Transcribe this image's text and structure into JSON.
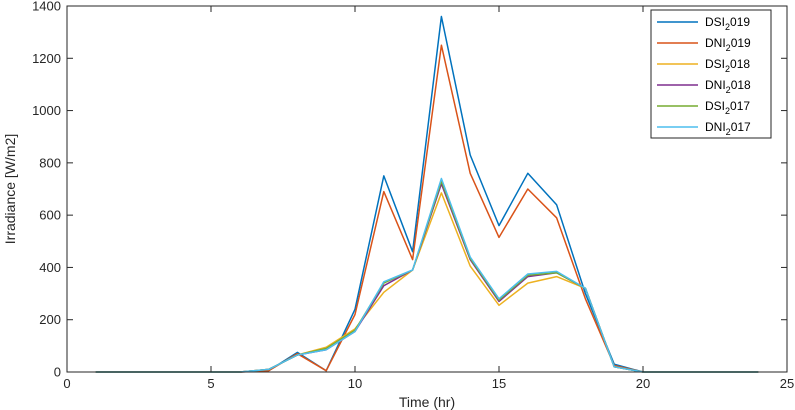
{
  "chart_data": {
    "type": "line",
    "title": "",
    "xlabel": "Time (hr)",
    "ylabel": "Irradiance [W/m2]",
    "xlim": [
      0,
      25
    ],
    "ylim": [
      0,
      1400
    ],
    "xticks": [
      "0",
      "5",
      "10",
      "15",
      "20",
      "25"
    ],
    "yticks": [
      "0",
      "200",
      "400",
      "600",
      "800",
      "1000",
      "1200",
      "1400"
    ],
    "grid": false,
    "legend_position": "top-right",
    "x": [
      1,
      2,
      3,
      4,
      5,
      6,
      7,
      8,
      9,
      10,
      11,
      12,
      13,
      14,
      15,
      16,
      17,
      18,
      19,
      20,
      21,
      22,
      23,
      24
    ],
    "series": [
      {
        "name_main": "DSI",
        "name_sub": "2",
        "name_tail": "019",
        "color": "#0072BD",
        "values": [
          0,
          0,
          0,
          0,
          0,
          0,
          5,
          75,
          5,
          240,
          750,
          460,
          1360,
          830,
          560,
          760,
          640,
          300,
          30,
          0,
          0,
          0,
          0,
          0
        ]
      },
      {
        "name_main": "DNI",
        "name_sub": "2",
        "name_tail": "019",
        "color": "#D95319",
        "values": [
          0,
          0,
          0,
          0,
          0,
          0,
          5,
          70,
          5,
          220,
          690,
          430,
          1250,
          760,
          515,
          700,
          590,
          280,
          25,
          0,
          0,
          0,
          0,
          0
        ]
      },
      {
        "name_main": "DSI",
        "name_sub": "2",
        "name_tail": "018",
        "color": "#EDB120",
        "values": [
          0,
          0,
          0,
          0,
          0,
          0,
          10,
          65,
          95,
          165,
          305,
          390,
          685,
          405,
          255,
          340,
          365,
          320,
          20,
          0,
          0,
          0,
          0,
          0
        ]
      },
      {
        "name_main": "DNI",
        "name_sub": "2",
        "name_tail": "018",
        "color": "#7E2F8E",
        "values": [
          0,
          0,
          0,
          0,
          0,
          0,
          10,
          65,
          85,
          155,
          330,
          390,
          720,
          430,
          270,
          365,
          380,
          320,
          20,
          0,
          0,
          0,
          0,
          0
        ]
      },
      {
        "name_main": "DSI",
        "name_sub": "2",
        "name_tail": "017",
        "color": "#77AC30",
        "values": [
          0,
          0,
          0,
          0,
          0,
          0,
          10,
          65,
          90,
          160,
          340,
          390,
          730,
          435,
          275,
          370,
          380,
          320,
          20,
          0,
          0,
          0,
          0,
          0
        ]
      },
      {
        "name_main": "DNI",
        "name_sub": "2",
        "name_tail": "017",
        "color": "#4DBEEE",
        "values": [
          0,
          0,
          0,
          0,
          0,
          0,
          10,
          65,
          85,
          155,
          345,
          390,
          740,
          440,
          280,
          375,
          385,
          320,
          20,
          0,
          0,
          0,
          0,
          0
        ]
      }
    ]
  }
}
